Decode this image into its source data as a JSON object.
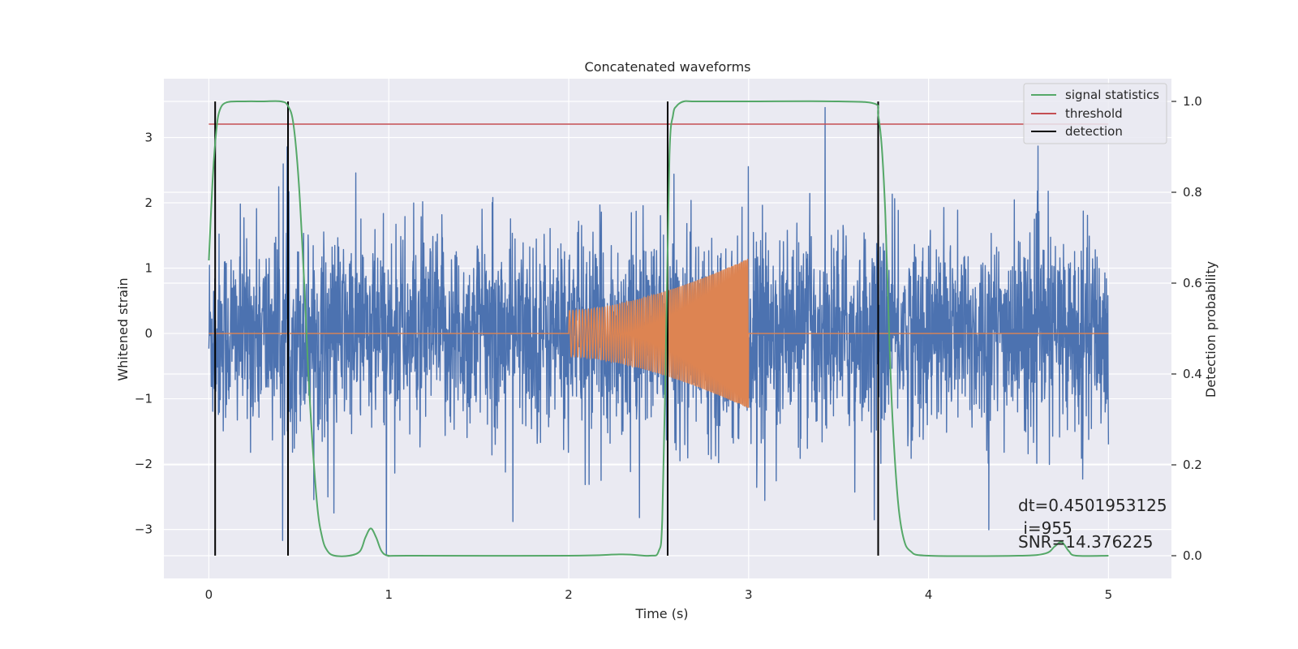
{
  "chart_data": {
    "type": "line",
    "title": "Concatenated waveforms",
    "xlabel": "Time (s)",
    "ylabel": "Whitened strain",
    "y2label": "Detection probability",
    "xlim": [
      -0.25,
      5.35
    ],
    "ylim": [
      -3.75,
      3.9
    ],
    "y2lim": [
      -0.05,
      1.05
    ],
    "xticks": [
      0,
      1,
      2,
      3,
      4,
      5
    ],
    "yticks": [
      -3,
      -2,
      -1,
      0,
      1,
      2,
      3
    ],
    "y2ticks": [
      0.0,
      0.2,
      0.4,
      0.6,
      0.8,
      1.0
    ],
    "background": "#eaeaf2",
    "grid": true,
    "legend_position": "upper right",
    "series": [
      {
        "name": "",
        "axis": "left",
        "color": "#4c72b0",
        "kind": "noise",
        "x_range": [
          0,
          5
        ],
        "envelope_sigma": 0.75,
        "max": 3.55,
        "min": -3.4
      },
      {
        "name": "",
        "axis": "left",
        "color": "#dd8452",
        "kind": "chirp",
        "x_range": [
          0,
          5
        ],
        "chirp_start": 2.0,
        "chirp_end": 3.0,
        "amplitude_start": 0.35,
        "amplitude_end": 1.15,
        "cycles": 95
      },
      {
        "name": "signal statistics",
        "axis": "right",
        "color": "#55a868",
        "x": [
          0,
          0.02,
          0.04,
          0.06,
          0.1,
          0.2,
          0.3,
          0.4,
          0.44,
          0.47,
          0.5,
          0.53,
          0.56,
          0.6,
          0.63,
          0.66,
          0.7,
          0.78,
          0.84,
          0.87,
          0.9,
          0.93,
          0.96,
          1.0,
          1.1,
          2.0,
          2.3,
          2.45,
          2.5,
          2.52,
          2.54,
          2.56,
          2.58,
          2.6,
          2.64,
          2.7,
          3.0,
          3.5,
          3.7,
          3.72,
          3.74,
          3.76,
          3.78,
          3.8,
          3.83,
          3.86,
          3.9,
          4.0,
          4.5,
          4.65,
          4.7,
          4.74,
          4.78,
          4.82,
          5.0
        ],
        "y": [
          0.65,
          0.82,
          0.93,
          0.98,
          0.998,
          1.0,
          1.0,
          1.0,
          0.99,
          0.95,
          0.82,
          0.6,
          0.35,
          0.12,
          0.04,
          0.01,
          0.0,
          0.0,
          0.01,
          0.04,
          0.06,
          0.04,
          0.01,
          0.0,
          0.0,
          0.0,
          0.003,
          0.0,
          0.01,
          0.08,
          0.45,
          0.88,
          0.97,
          0.99,
          1.0,
          1.0,
          1.0,
          1.0,
          0.995,
          0.97,
          0.9,
          0.75,
          0.5,
          0.3,
          0.12,
          0.04,
          0.01,
          0.0,
          0.0,
          0.005,
          0.02,
          0.03,
          0.01,
          0.0,
          0.0
        ]
      },
      {
        "name": "threshold",
        "axis": "right",
        "color": "#c44e52",
        "x": [
          0,
          5
        ],
        "y": [
          0.95,
          0.95
        ]
      }
    ],
    "detections": {
      "name": "detection",
      "color": "#000000",
      "x": [
        0.035,
        0.44,
        2.55,
        3.72
      ],
      "ymin": -3.4,
      "ymax": 3.55
    },
    "annotations": [
      "dt=0.4501953125",
      " i=955",
      "SNR=14.376225"
    ]
  }
}
